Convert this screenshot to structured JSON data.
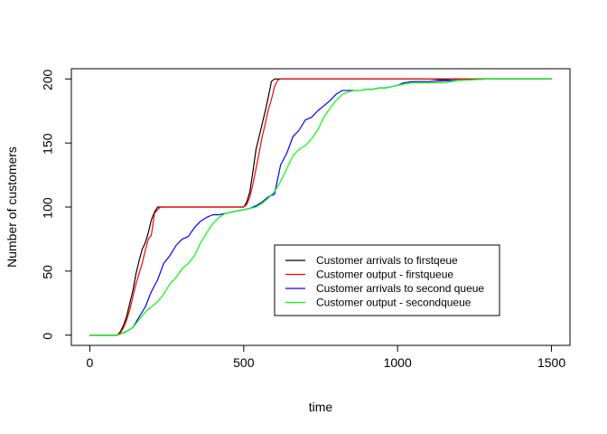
{
  "chart_data": {
    "type": "line",
    "title": "",
    "xlabel": "time",
    "ylabel": "Number of customers",
    "xlim": [
      -60,
      1560
    ],
    "ylim": [
      -8,
      208
    ],
    "xticks": [
      0,
      500,
      1000,
      1500
    ],
    "yticks": [
      0,
      50,
      100,
      150,
      200
    ],
    "grid": false,
    "legend_position": "bottom-right",
    "series": [
      {
        "name": "Customer arrivals to firstqeue",
        "color": "#000000",
        "x": [
          0,
          90,
          100,
          110,
          120,
          130,
          140,
          150,
          160,
          170,
          180,
          190,
          200,
          210,
          220,
          300,
          400,
          500,
          510,
          520,
          530,
          540,
          550,
          560,
          570,
          580,
          590,
          600,
          610,
          700,
          800,
          900,
          1000,
          1100,
          1200,
          1300,
          1400,
          1500
        ],
        "y": [
          0,
          0,
          3,
          8,
          15,
          25,
          35,
          48,
          58,
          67,
          72,
          80,
          90,
          96,
          100,
          100,
          100,
          100,
          104,
          112,
          128,
          145,
          155,
          165,
          175,
          186,
          198,
          200,
          200,
          200,
          200,
          200,
          200,
          200,
          200,
          200,
          200,
          200
        ]
      },
      {
        "name": "Customer output - firstqueue",
        "color": "#ff0000",
        "x": [
          0,
          90,
          100,
          110,
          120,
          130,
          140,
          150,
          160,
          170,
          180,
          190,
          200,
          210,
          220,
          230,
          300,
          400,
          500,
          510,
          520,
          530,
          540,
          550,
          560,
          570,
          580,
          590,
          600,
          610,
          620,
          700,
          800,
          900,
          1000,
          1100,
          1150,
          1180,
          1200,
          1300,
          1400,
          1500
        ],
        "y": [
          0,
          0,
          2,
          6,
          12,
          20,
          30,
          40,
          48,
          56,
          66,
          75,
          78,
          95,
          98,
          100,
          100,
          100,
          100,
          102,
          108,
          118,
          130,
          142,
          155,
          165,
          176,
          184,
          194,
          199,
          200,
          200,
          200,
          200,
          200,
          200,
          199,
          200,
          200,
          200,
          200,
          200
        ]
      },
      {
        "name": "Customer arrivals to second queue",
        "color": "#0000ff",
        "x": [
          0,
          90,
          100,
          120,
          140,
          160,
          180,
          200,
          220,
          240,
          260,
          280,
          300,
          320,
          340,
          360,
          380,
          400,
          420,
          440,
          460,
          480,
          500,
          520,
          540,
          560,
          580,
          600,
          620,
          640,
          660,
          680,
          700,
          720,
          740,
          760,
          780,
          800,
          820,
          840,
          860,
          880,
          900,
          920,
          940,
          960,
          980,
          1000,
          1020,
          1050,
          1100,
          1200,
          1300,
          1400,
          1500
        ],
        "y": [
          0,
          0,
          1,
          3,
          6,
          14,
          22,
          34,
          43,
          56,
          62,
          70,
          75,
          77,
          84,
          89,
          92,
          94,
          94,
          95,
          96,
          97,
          98,
          99,
          101,
          104,
          108,
          110,
          133,
          142,
          155,
          160,
          168,
          170,
          175,
          179,
          183,
          188,
          191,
          191,
          191,
          191,
          192,
          192,
          193,
          193,
          194,
          195,
          197,
          198,
          198,
          199,
          200,
          200,
          200
        ]
      },
      {
        "name": "Customer output - secondqueue",
        "color": "#00ff00",
        "x": [
          0,
          90,
          100,
          120,
          140,
          160,
          180,
          200,
          220,
          240,
          260,
          280,
          300,
          320,
          340,
          360,
          380,
          400,
          420,
          440,
          460,
          480,
          500,
          520,
          540,
          560,
          580,
          600,
          620,
          640,
          660,
          680,
          700,
          720,
          740,
          760,
          780,
          800,
          820,
          840,
          860,
          880,
          900,
          920,
          940,
          960,
          980,
          1000,
          1020,
          1050,
          1100,
          1150,
          1200,
          1300,
          1400,
          1500
        ],
        "y": [
          0,
          0,
          1,
          3,
          6,
          12,
          18,
          22,
          26,
          32,
          40,
          45,
          52,
          56,
          62,
          72,
          80,
          87,
          92,
          95,
          96,
          97,
          98,
          99,
          100,
          103,
          107,
          112,
          120,
          130,
          140,
          145,
          148,
          153,
          160,
          170,
          177,
          183,
          188,
          190,
          191,
          191,
          192,
          192,
          193,
          193,
          194,
          195,
          196,
          197,
          197,
          197,
          199,
          200,
          200,
          200
        ]
      }
    ]
  }
}
